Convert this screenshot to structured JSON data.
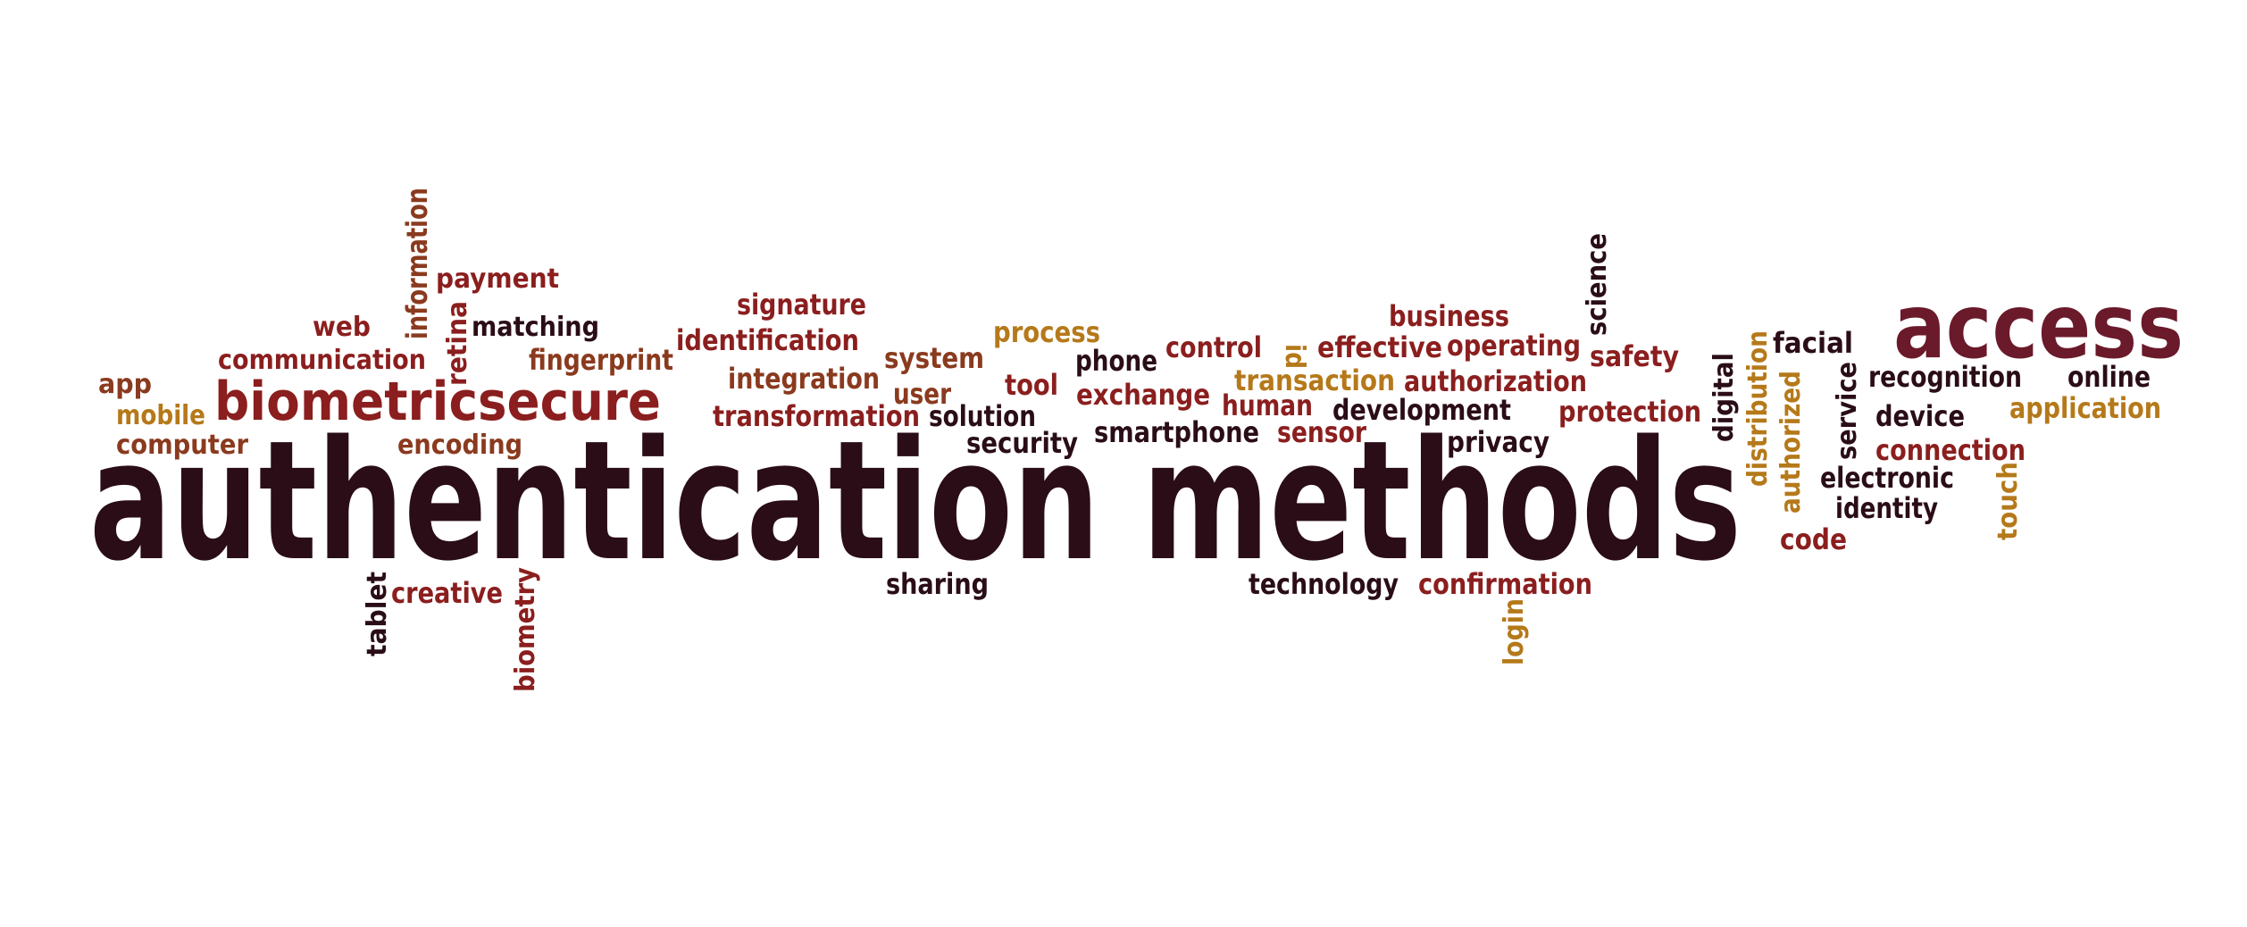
{
  "palette": {
    "dark": "#2a0d16",
    "maroon": "#6a1a2a",
    "red": "#8b1e1e",
    "brown": "#8a3a1e",
    "gold": "#b5791a",
    "gray": "#9a8e8a"
  },
  "words": [
    {
      "id": "authentication-methods",
      "text": "authentication methods",
      "color": "dark"
    },
    {
      "id": "access",
      "text": "access",
      "color": "maroon"
    },
    {
      "id": "biometric",
      "text": "biometric",
      "color": "red"
    },
    {
      "id": "secure",
      "text": "secure",
      "color": "red"
    },
    {
      "id": "information",
      "text": "information",
      "color": "brown"
    },
    {
      "id": "payment",
      "text": "payment",
      "color": "red"
    },
    {
      "id": "web",
      "text": "web",
      "color": "red"
    },
    {
      "id": "retina",
      "text": "retina",
      "color": "red"
    },
    {
      "id": "matching",
      "text": "matching",
      "color": "dark"
    },
    {
      "id": "communication",
      "text": "communication",
      "color": "red"
    },
    {
      "id": "fingerprint",
      "text": "fingerprint",
      "color": "brown"
    },
    {
      "id": "app",
      "text": "app",
      "color": "brown"
    },
    {
      "id": "mobile",
      "text": "mobile",
      "color": "gold"
    },
    {
      "id": "computer",
      "text": "computer",
      "color": "brown"
    },
    {
      "id": "encoding",
      "text": "encoding",
      "color": "brown"
    },
    {
      "id": "signature",
      "text": "signature",
      "color": "red"
    },
    {
      "id": "identification",
      "text": "identification",
      "color": "red"
    },
    {
      "id": "integration",
      "text": "integration",
      "color": "brown"
    },
    {
      "id": "transformation",
      "text": "transformation",
      "color": "red"
    },
    {
      "id": "system",
      "text": "system",
      "color": "brown"
    },
    {
      "id": "user",
      "text": "user",
      "color": "brown"
    },
    {
      "id": "solution",
      "text": "solution",
      "color": "dark"
    },
    {
      "id": "process",
      "text": "process",
      "color": "gold"
    },
    {
      "id": "tool",
      "text": "tool",
      "color": "red"
    },
    {
      "id": "security",
      "text": "security",
      "color": "dark"
    },
    {
      "id": "phone",
      "text": "phone",
      "color": "dark"
    },
    {
      "id": "control",
      "text": "control",
      "color": "red"
    },
    {
      "id": "exchange",
      "text": "exchange",
      "color": "red"
    },
    {
      "id": "smartphone",
      "text": "smartphone",
      "color": "dark"
    },
    {
      "id": "id",
      "text": "id",
      "color": "gold"
    },
    {
      "id": "effective",
      "text": "effective",
      "color": "red"
    },
    {
      "id": "operating",
      "text": "operating",
      "color": "red"
    },
    {
      "id": "business",
      "text": "business",
      "color": "red"
    },
    {
      "id": "transaction",
      "text": "transaction",
      "color": "gold"
    },
    {
      "id": "human",
      "text": "human",
      "color": "red"
    },
    {
      "id": "authorization",
      "text": "authorization",
      "color": "red"
    },
    {
      "id": "development",
      "text": "development",
      "color": "dark"
    },
    {
      "id": "sensor",
      "text": "sensor",
      "color": "red"
    },
    {
      "id": "privacy",
      "text": "privacy",
      "color": "dark"
    },
    {
      "id": "science",
      "text": "science",
      "color": "dark"
    },
    {
      "id": "safety",
      "text": "safety",
      "color": "red"
    },
    {
      "id": "protection",
      "text": "protection",
      "color": "red"
    },
    {
      "id": "digital",
      "text": "digital",
      "color": "dark"
    },
    {
      "id": "distribution",
      "text": "distribution",
      "color": "gold"
    },
    {
      "id": "authorized",
      "text": "authorized",
      "color": "gold"
    },
    {
      "id": "facial",
      "text": "facial",
      "color": "dark"
    },
    {
      "id": "service",
      "text": "service",
      "color": "dark"
    },
    {
      "id": "recognition",
      "text": "recognition",
      "color": "dark"
    },
    {
      "id": "online",
      "text": "online",
      "color": "dark"
    },
    {
      "id": "device",
      "text": "device",
      "color": "dark"
    },
    {
      "id": "application",
      "text": "application",
      "color": "gold"
    },
    {
      "id": "connection",
      "text": "connection",
      "color": "red"
    },
    {
      "id": "electronic",
      "text": "electronic",
      "color": "dark"
    },
    {
      "id": "identity",
      "text": "identity",
      "color": "dark"
    },
    {
      "id": "touch",
      "text": "touch",
      "color": "gold"
    },
    {
      "id": "code",
      "text": "code",
      "color": "red"
    },
    {
      "id": "tablet",
      "text": "tablet",
      "color": "dark"
    },
    {
      "id": "creative",
      "text": "creative",
      "color": "red"
    },
    {
      "id": "biometry",
      "text": "biometry",
      "color": "red"
    },
    {
      "id": "sharing",
      "text": "sharing",
      "color": "dark"
    },
    {
      "id": "technology",
      "text": "technology",
      "color": "dark"
    },
    {
      "id": "confirmation",
      "text": "confirmation",
      "color": "red"
    },
    {
      "id": "login",
      "text": "login",
      "color": "gold"
    }
  ]
}
